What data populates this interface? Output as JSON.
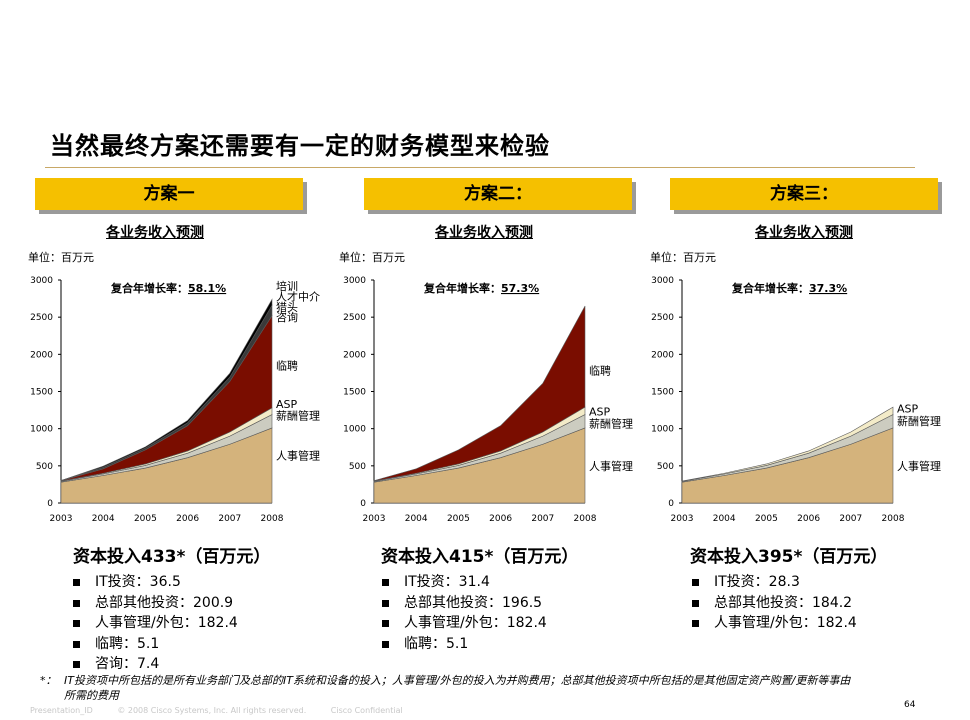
{
  "title": "当然最终方案还需要有一定的财务模型来检验",
  "footnote_marker": "*：",
  "footnote": "IT投资项中所包括的是所有业务部门及总部的IT系统和设备的投入；人事管理/外包的投入为并购费用；总部其他投资项中所包括的是其他固定资产购置/更新等事由所需的费用",
  "footer": {
    "presentation_id": "Presentation_ID",
    "copyright": "© 2008 Cisco Systems, Inc. All rights reserved.",
    "confidential": "Cisco Confidential"
  },
  "page_number": "64",
  "colors": {
    "banner": "#f5c000",
    "hr": "#d4b37c",
    "salary": "#ccccc0",
    "asp": "#f3ebc8",
    "temp": "#7a0d00",
    "consult": "#3a3a3a",
    "top": "#000000"
  },
  "panels": [
    {
      "banner": "方案一",
      "subtitle": "各业务收入预测",
      "unit": "单位：百万元",
      "cagr_label": "复合年增长率：",
      "cagr_value": "58.1%",
      "capital": "资本投入433*（百万元）",
      "bullets": [
        "IT投资：36.5",
        "总部其他投资：200.9",
        "人事管理/外包：182.4",
        "临聘：5.1",
        "咨询：7.4"
      ],
      "chart_data": {
        "type": "area",
        "x": [
          "2003",
          "2004",
          "2005",
          "2006",
          "2007",
          "2008"
        ],
        "ylim": [
          0,
          3000
        ],
        "yticks": [
          0,
          500,
          1000,
          1500,
          2000,
          2500,
          3000
        ],
        "series": [
          {
            "name": "人事管理",
            "color": "#d4b37c",
            "values": [
              280,
              370,
              470,
              610,
              790,
              1010
            ]
          },
          {
            "name": "薪酬管理",
            "color": "#ccccc0",
            "values": [
              10,
              20,
              35,
              60,
              110,
              180
            ]
          },
          {
            "name": "ASP",
            "color": "#f3ebc8",
            "values": [
              5,
              10,
              20,
              30,
              55,
              90
            ]
          },
          {
            "name": "临聘",
            "color": "#7a0d00",
            "values": [
              5,
              60,
              190,
              340,
              680,
              1240
            ]
          },
          {
            "name": "咨询",
            "color": "#3a3a3a",
            "values": [
              2,
              20,
              25,
              40,
              60,
              140
            ]
          },
          {
            "name": "猎头",
            "color": "#000000",
            "values": [
              1,
              15,
              15,
              30,
              50,
              80
            ]
          }
        ],
        "labels": [
          {
            "text": "培训",
            "value": 2920
          },
          {
            "text": "人才中介",
            "value": 2780
          },
          {
            "text": "猎头",
            "value": 2640
          },
          {
            "text": "咨询",
            "value": 2500
          },
          {
            "text": "临聘",
            "value": 1850
          },
          {
            "text": "ASP",
            "value": 1330
          },
          {
            "text": "薪酬管理",
            "value": 1180
          },
          {
            "text": "人事管理",
            "value": 640
          }
        ]
      }
    },
    {
      "banner": "方案二：",
      "subtitle": "各业务收入预测",
      "unit": "单位：百万元",
      "cagr_label": "复合年增长率：",
      "cagr_value": "57.3%",
      "capital": "资本投入415*（百万元）",
      "bullets": [
        "IT投资：31.4",
        "总部其他投资：196.5",
        "人事管理/外包：182.4",
        "临聘：5.1"
      ],
      "chart_data": {
        "type": "area",
        "x": [
          "2003",
          "2004",
          "2005",
          "2006",
          "2007",
          "2008"
        ],
        "ylim": [
          0,
          3000
        ],
        "yticks": [
          0,
          500,
          1000,
          1500,
          2000,
          2500,
          3000
        ],
        "series": [
          {
            "name": "人事管理",
            "color": "#d4b37c",
            "values": [
              280,
              370,
              470,
              610,
              790,
              1010
            ]
          },
          {
            "name": "薪酬管理",
            "color": "#ccccc0",
            "values": [
              10,
              20,
              35,
              60,
              110,
              180
            ]
          },
          {
            "name": "ASP",
            "color": "#f3ebc8",
            "values": [
              5,
              10,
              20,
              30,
              55,
              100
            ]
          },
          {
            "name": "临聘",
            "color": "#7a0d00",
            "values": [
              5,
              60,
              190,
              340,
              655,
              1360
            ]
          }
        ],
        "labels": [
          {
            "text": "临聘",
            "value": 1780
          },
          {
            "text": "ASP",
            "value": 1230
          },
          {
            "text": "薪酬管理",
            "value": 1070
          },
          {
            "text": "人事管理",
            "value": 500
          }
        ]
      }
    },
    {
      "banner": "方案三：",
      "subtitle": "各业务收入预测",
      "unit": "单位：百万元",
      "cagr_label": "复合年增长率：",
      "cagr_value": "37.3%",
      "capital": "资本投入395*（百万元）",
      "bullets": [
        "IT投资：28.3",
        "总部其他投资：184.2",
        "人事管理/外包：182.4"
      ],
      "chart_data": {
        "type": "area",
        "x": [
          "2003",
          "2004",
          "2005",
          "2006",
          "2007",
          "2008"
        ],
        "ylim": [
          0,
          3000
        ],
        "yticks": [
          0,
          500,
          1000,
          1500,
          2000,
          2500,
          3000
        ],
        "series": [
          {
            "name": "人事管理",
            "color": "#d4b37c",
            "values": [
              280,
              370,
              470,
              610,
              790,
              1010
            ]
          },
          {
            "name": "薪酬管理",
            "color": "#ccccc0",
            "values": [
              10,
              20,
              35,
              60,
              110,
              180
            ]
          },
          {
            "name": "ASP",
            "color": "#f3ebc8",
            "values": [
              5,
              10,
              20,
              30,
              55,
              100
            ]
          }
        ],
        "labels": [
          {
            "text": "ASP",
            "value": 1270
          },
          {
            "text": "薪酬管理",
            "value": 1100
          },
          {
            "text": "人事管理",
            "value": 500
          }
        ]
      }
    }
  ]
}
